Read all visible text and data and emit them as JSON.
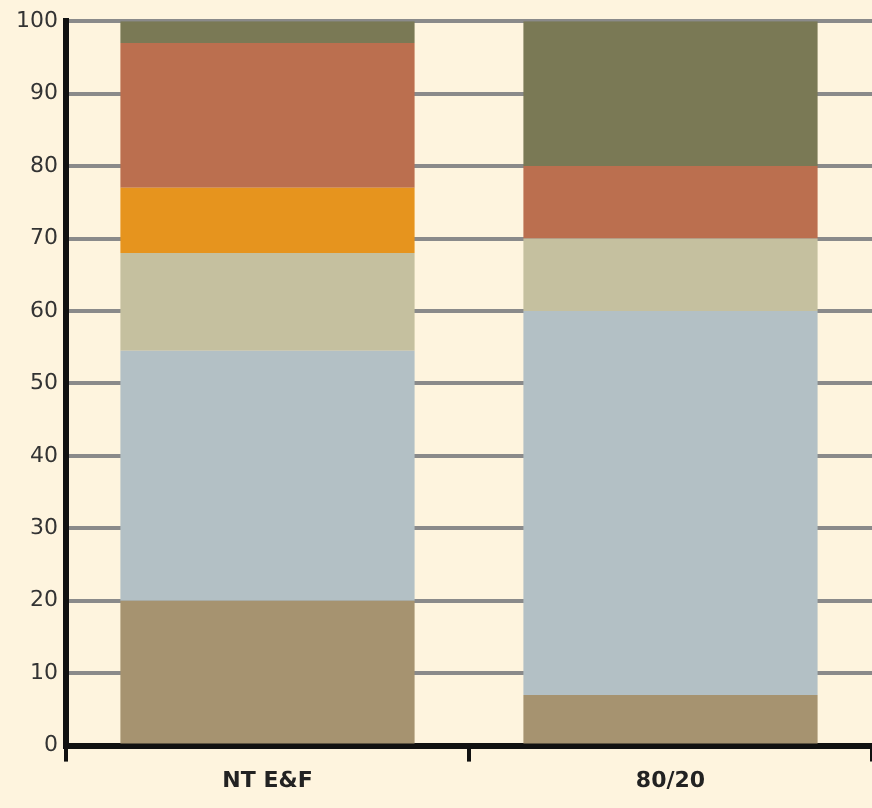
{
  "chart_data": {
    "type": "bar",
    "stacked": true,
    "categories": [
      "NT E&F",
      "80/20"
    ],
    "series": [
      {
        "color": "#a69370",
        "values": [
          20,
          7
        ]
      },
      {
        "color": "#b3c0c5",
        "values": [
          34.5,
          53
        ]
      },
      {
        "color": "#c5c09f",
        "values": [
          13.5,
          10
        ]
      },
      {
        "color": "#e6941e",
        "values": [
          9,
          0
        ]
      },
      {
        "color": "#bb6f4f",
        "values": [
          20,
          10
        ]
      },
      {
        "color": "#7a7955",
        "values": [
          3,
          20
        ]
      }
    ],
    "ylim": [
      0,
      100
    ],
    "yticks": [
      0,
      10,
      20,
      30,
      40,
      50,
      60,
      70,
      80,
      90,
      100
    ],
    "grid": "y",
    "legend": false
  }
}
